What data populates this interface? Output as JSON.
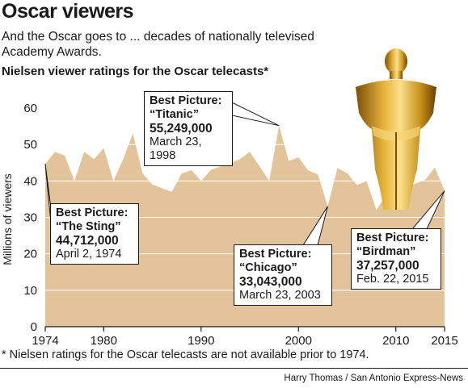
{
  "header": {
    "title": "Oscar viewers",
    "subtitle": "And the Oscar goes to ... decades of nationally televised Academy Awards.",
    "chart_heading": "Nielsen viewer ratings for the Oscar telecasts*"
  },
  "footer": {
    "footnote": "* Nielsen ratings for the Oscar telecasts are not available prior to 1974.",
    "credit": "Harry Thomas / San Antonio Express-News"
  },
  "colors": {
    "area_fill": "#e3c49a",
    "text": "#1a1a1a",
    "gold": "#c8901a"
  },
  "illustration": {
    "name": "oscar-statuette"
  },
  "chart_data": {
    "type": "area",
    "ylabel": "Millions of viewers",
    "xlabel": "",
    "xlim": [
      1974,
      2015
    ],
    "ylim": [
      0,
      60
    ],
    "grid": "horizontal",
    "x_ticks": [
      "1974",
      "1980",
      "1990",
      "2000",
      "2010",
      "2015"
    ],
    "y_ticks": [
      "0",
      "10",
      "20",
      "30",
      "40",
      "50",
      "60"
    ],
    "series": [
      {
        "x": [
          1974,
          1975,
          1976,
          1977,
          1978,
          1979,
          1980,
          1981,
          1982,
          1983,
          1984,
          1985,
          1986,
          1987,
          1988,
          1989,
          1990,
          1991,
          1992,
          1993,
          1994,
          1995,
          1996,
          1997,
          1998,
          1999,
          2000,
          2001,
          2002,
          2003,
          2004,
          2005,
          2006,
          2007,
          2008,
          2009,
          2010,
          2011,
          2012,
          2013,
          2014,
          2015
        ],
        "values": [
          44.7,
          48,
          47,
          40,
          48,
          46,
          49,
          40,
          46,
          53,
          42,
          39,
          38,
          37,
          42,
          43,
          40,
          43,
          44,
          45,
          46,
          48,
          44,
          40,
          55.2,
          45.5,
          46.5,
          42.9,
          41.8,
          33.0,
          43.5,
          42.1,
          38.9,
          39.9,
          32.0,
          36.3,
          41.3,
          37.9,
          39.3,
          40.3,
          43.7,
          37.3
        ]
      }
    ],
    "annotations": [
      {
        "label": "Best Picture:",
        "film": "“The Sting”",
        "viewers": "44,712,000",
        "date": "April 2, 1974",
        "year": 1974,
        "value": 44.7
      },
      {
        "label": "Best Picture:",
        "film": "“Titanic”",
        "viewers": "55,249,000",
        "date": "March 23, 1998",
        "year": 1998,
        "value": 55.2
      },
      {
        "label": "Best Picture:",
        "film": "“Chicago”",
        "viewers": "33,043,000",
        "date": "March 23, 2003",
        "year": 2003,
        "value": 33.0
      },
      {
        "label": "Best Picture:",
        "film": "“Birdman”",
        "viewers": "37,257,000",
        "date": "Feb. 22, 2015",
        "year": 2015,
        "value": 37.3
      }
    ]
  }
}
